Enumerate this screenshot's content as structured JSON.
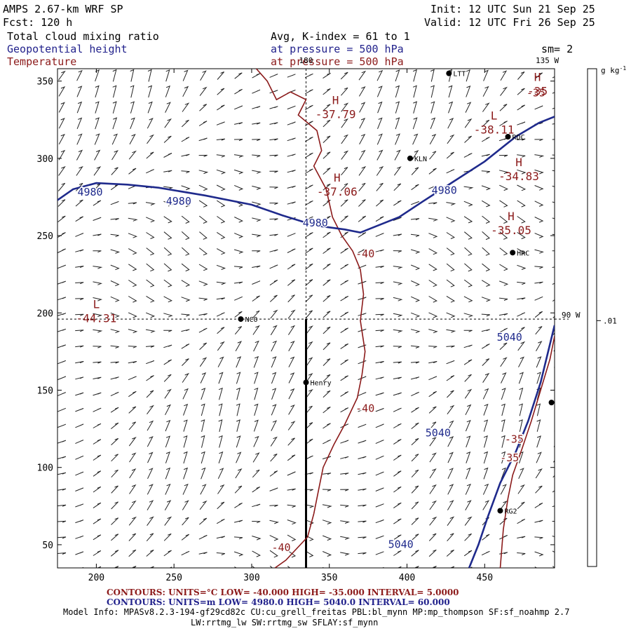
{
  "header": {
    "model": "AMPS 2.67-km WRF SP",
    "forecast": "Fcst:  120 h",
    "init": "Init: 12 UTC Sun 21 Sep 25",
    "valid": "Valid: 12 UTC Fri 26 Sep 25",
    "field1": "Total cloud mixing ratio",
    "field1_info": "Avg, K-index =  61 to   1",
    "field2": "Geopotential height",
    "field2_info": "at pressure =  500 hPa",
    "field3": "Temperature",
    "field3_info": "at pressure =  500 hPa",
    "smooth": "sm= 2"
  },
  "colors": {
    "height": "#1f2a8c",
    "temperature": "#8b1a1a",
    "text_blue": "#22228c",
    "text_red": "#8c1a1a"
  },
  "chart_data": {
    "type": "line",
    "xlim": [
      175,
      495
    ],
    "ylim": [
      35,
      358
    ],
    "x_ticks": [
      200,
      250,
      300,
      350,
      400,
      450
    ],
    "y_ticks": [
      50,
      100,
      150,
      200,
      250,
      300,
      350
    ],
    "grid": false,
    "longitude_labels": {
      "lon180": "180",
      "lon135w": "135 W",
      "lon90w": "90 W"
    },
    "colorbar": {
      "unit": "g kg",
      "unit_sup": "-1",
      "tick_label": ".01",
      "tick_value_y": 195
    },
    "height_contours": [
      {
        "label": "4980",
        "points": [
          [
            175,
            273
          ],
          [
            185,
            280
          ],
          [
            200,
            284
          ],
          [
            220,
            283
          ],
          [
            240,
            281
          ],
          [
            270,
            276
          ],
          [
            300,
            270
          ],
          [
            320,
            263
          ],
          [
            333,
            259
          ],
          [
            345,
            256
          ],
          [
            360,
            254
          ],
          [
            370,
            252
          ],
          [
            380,
            256
          ],
          [
            395,
            262
          ],
          [
            410,
            272
          ],
          [
            430,
            285
          ],
          [
            450,
            298
          ],
          [
            470,
            314
          ],
          [
            485,
            323
          ],
          [
            495,
            327
          ]
        ]
      },
      {
        "label": "5040",
        "points": [
          [
            440,
            35
          ],
          [
            446,
            50
          ],
          [
            452,
            68
          ],
          [
            460,
            90
          ],
          [
            470,
            110
          ],
          [
            478,
            130
          ],
          [
            486,
            155
          ],
          [
            495,
            192
          ]
        ]
      }
    ],
    "height_labels": [
      {
        "text": "4980",
        "x": 196,
        "y": 276
      },
      {
        "text": "4980",
        "x": 253,
        "y": 270
      },
      {
        "text": "4980",
        "x": 341,
        "y": 256
      },
      {
        "text": "4980",
        "x": 424,
        "y": 277
      },
      {
        "text": "5040",
        "x": 466,
        "y": 182
      },
      {
        "text": "5040",
        "x": 420,
        "y": 120
      },
      {
        "text": "5040",
        "x": 396,
        "y": 48
      }
    ],
    "temperature_contours": [
      {
        "label": "-40",
        "points": [
          [
            303,
            358
          ],
          [
            310,
            350
          ],
          [
            316,
            338
          ],
          [
            325,
            343
          ],
          [
            335,
            338
          ],
          [
            330,
            328
          ],
          [
            342,
            318
          ],
          [
            345,
            305
          ],
          [
            340,
            295
          ],
          [
            348,
            280
          ],
          [
            352,
            262
          ],
          [
            358,
            250
          ],
          [
            365,
            240
          ],
          [
            370,
            228
          ],
          [
            372,
            212
          ],
          [
            370,
            195
          ],
          [
            373,
            175
          ],
          [
            371,
            160
          ],
          [
            368,
            145
          ],
          [
            360,
            128
          ],
          [
            353,
            115
          ],
          [
            346,
            100
          ],
          [
            343,
            85
          ],
          [
            340,
            70
          ],
          [
            336,
            55
          ],
          [
            322,
            40
          ],
          [
            315,
            35
          ]
        ]
      },
      {
        "label": "-35",
        "points": [
          [
            495,
            185
          ],
          [
            492,
            170
          ],
          [
            486,
            150
          ],
          [
            480,
            130
          ],
          [
            474,
            112
          ],
          [
            468,
            95
          ],
          [
            465,
            80
          ],
          [
            462,
            60
          ],
          [
            460,
            35
          ]
        ]
      }
    ],
    "temperature_labels": [
      {
        "text": "-40",
        "x": 373,
        "y": 236
      },
      {
        "text": "-40",
        "x": 373,
        "y": 136
      },
      {
        "text": "-40",
        "x": 319,
        "y": 46
      },
      {
        "text": "-35",
        "x": 469,
        "y": 116
      },
      {
        "text": "-35",
        "x": 466,
        "y": 104
      },
      {
        "text": "-35",
        "x": 483,
        "y": 340
      }
    ],
    "extrema": [
      {
        "type": "H",
        "value": "-37.79",
        "x": 354,
        "y": 335
      },
      {
        "type": "H",
        "value": "-37.06",
        "x": 355,
        "y": 285
      },
      {
        "type": "L",
        "value": "-38.11",
        "x": 456,
        "y": 325
      },
      {
        "type": "H",
        "value": "-34.83",
        "x": 472,
        "y": 295
      },
      {
        "type": "H",
        "value": "-35.05",
        "x": 467,
        "y": 260
      },
      {
        "type": "H",
        "value": "-35",
        "x": 484,
        "y": 350
      },
      {
        "type": "L",
        "value": "-44.31",
        "x": 200,
        "y": 203
      }
    ],
    "stations": [
      {
        "name": "LTT",
        "x": 427,
        "y": 355
      },
      {
        "name": "RDC",
        "x": 465,
        "y": 314
      },
      {
        "name": "KLN",
        "x": 402,
        "y": 300
      },
      {
        "name": "HRC",
        "x": 468,
        "y": 239
      },
      {
        "name": "NCO",
        "x": 293,
        "y": 196
      },
      {
        "name": "Henry",
        "x": 335,
        "y": 155
      },
      {
        "name": "RG2",
        "x": 460,
        "y": 72
      },
      {
        "name": "",
        "x": 493,
        "y": 142
      }
    ],
    "meridian_dashed": {
      "x": 335
    },
    "parallel_dashed": {
      "y": 196
    },
    "pole_line": {
      "x": 335,
      "y_from": 35,
      "y_to": 196
    }
  },
  "footer": {
    "temp_line": "CONTOURS:  UNITS=°C  LOW=  -40.000        HIGH=  -35.000       INTERVAL=    5.0000",
    "height_line": "CONTOURS:  UNITS=m  LOW=   4980.0          HIGH=  5040.0         INTERVAL=    60.000",
    "model_info": "Model Info: MPASv8.2.3-194-gf29cd82c CU:cu_grell_freitas PBL:bl_mynn MP:mp_thompson SF:sf_noahmp 2.7",
    "model_info2": "LW:rrtmg_lw SW:rrtmg_sw SFLAY:sf_mynn"
  }
}
